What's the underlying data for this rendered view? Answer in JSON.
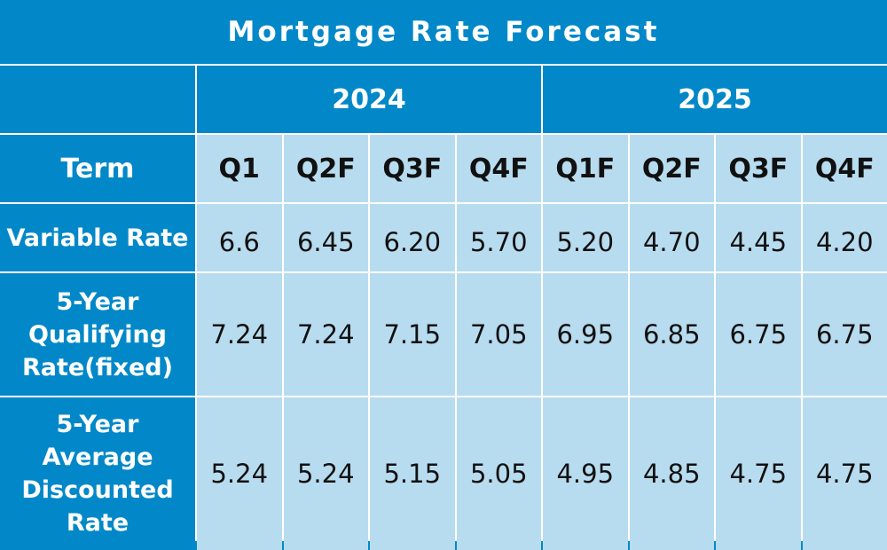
{
  "chart_data": {
    "type": "table",
    "title": "Mortgage Rate Forecast",
    "header_label": "Term",
    "years": [
      {
        "label": "2024",
        "span": 4
      },
      {
        "label": "2025",
        "span": 4
      }
    ],
    "quarters": [
      "Q1",
      "Q2F",
      "Q3F",
      "Q4F",
      "Q1F",
      "Q2F",
      "Q3F",
      "Q4F"
    ],
    "rows": [
      {
        "label": [
          "Variable Rate"
        ],
        "values": [
          "6.6",
          "6.45",
          "6.20",
          "5.70",
          "5.20",
          "4.70",
          "4.45",
          "4.20"
        ]
      },
      {
        "label": [
          "5-Year",
          "Qualifying",
          "Rate(fixed)"
        ],
        "values": [
          "7.24",
          "7.24",
          "7.15",
          "7.05",
          "6.95",
          "6.85",
          "6.75",
          "6.75"
        ]
      },
      {
        "label": [
          "5-Year",
          "Average",
          "Discounted",
          "Rate"
        ],
        "values": [
          "5.24",
          "5.24",
          "5.15",
          "5.05",
          "4.95",
          "4.85",
          "4.75",
          "4.75"
        ]
      }
    ]
  },
  "colors": {
    "header_blue": "#0288c8",
    "cell_light_blue": "#b8dcef",
    "grid_white": "#ffffff"
  }
}
